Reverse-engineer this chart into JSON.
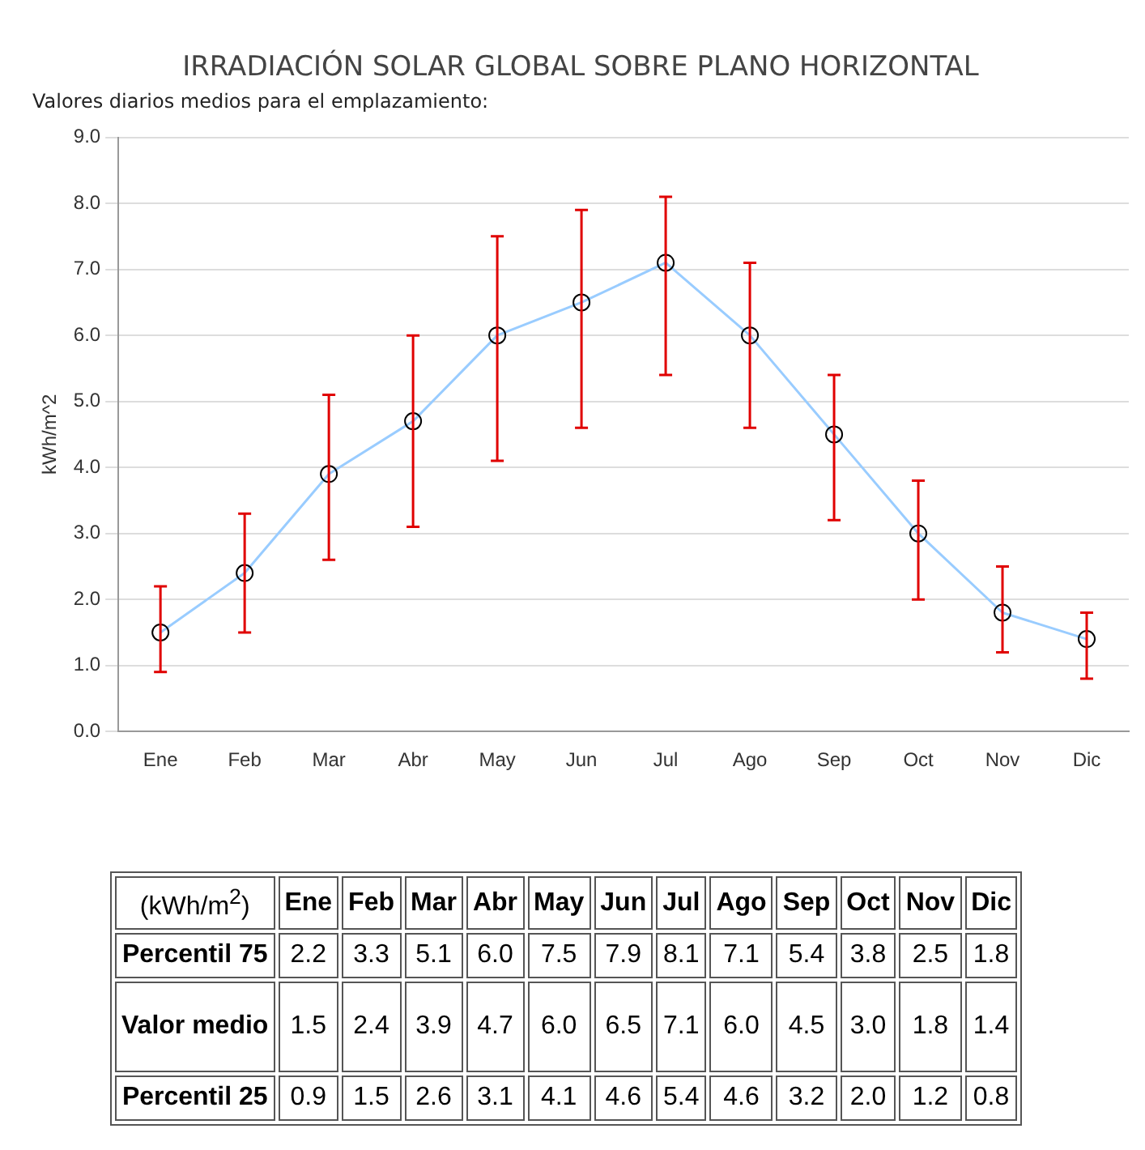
{
  "chart_data": [
    {
      "type": "line",
      "title": "IRRADIACIÓN SOLAR GLOBAL SOBRE PLANO HORIZONTAL",
      "subtitle": "Valores diarios medios para el emplazamiento:",
      "ylabel": "kWh/m^2",
      "categories": [
        "Ene",
        "Feb",
        "Mar",
        "Abr",
        "May",
        "Jun",
        "Jul",
        "Ago",
        "Sep",
        "Oct",
        "Nov",
        "Dic"
      ],
      "series": [
        {
          "color": "#99ccff",
          "values": [
            1.5,
            2.4,
            3.9,
            4.7,
            6.0,
            6.5,
            7.1,
            6.0,
            4.5,
            3.0,
            1.8,
            1.4
          ],
          "errors": [
            [
              0.9,
              2.2
            ],
            [
              1.5,
              3.3
            ],
            [
              2.6,
              5.1
            ],
            [
              3.1,
              6.0
            ],
            [
              4.1,
              7.5
            ],
            [
              4.6,
              7.9
            ],
            [
              5.4,
              8.1
            ],
            [
              4.6,
              7.1
            ],
            [
              3.2,
              5.4
            ],
            [
              2.0,
              3.8
            ],
            [
              1.2,
              2.5
            ],
            [
              0.8,
              1.8
            ]
          ]
        }
      ],
      "ylim": [
        0,
        9
      ],
      "yticks": [
        {
          "value": 0,
          "label": "0.0"
        },
        {
          "value": 1,
          "label": "1.0"
        },
        {
          "value": 2,
          "label": "2.0"
        },
        {
          "value": 3,
          "label": "3.0"
        },
        {
          "value": 4,
          "label": "4.0"
        },
        {
          "value": 5,
          "label": "5.0"
        },
        {
          "value": 6,
          "label": "6.0"
        },
        {
          "value": 7,
          "label": "7.0"
        },
        {
          "value": 8,
          "label": "8.0"
        },
        {
          "value": 9,
          "label": "9.0"
        }
      ],
      "grid": "y",
      "marker": "circle",
      "line_style": "solid"
    },
    {
      "type": "other",
      "annotations": [
        "(kWh/m$^{2}$)"
      ],
      "categories": [
        "Ene",
        "Feb",
        "Mar",
        "Abr",
        "May",
        "Jun",
        "Jul",
        "Ago",
        "Sep",
        "Oct",
        "Nov",
        "Dic"
      ],
      "y_categories": [
        "Percentil 75",
        "Valor medio",
        "Percentil 25"
      ],
      "cell_labels": [
        [
          "2.2",
          "3.3",
          "5.1",
          "6.0",
          "7.5",
          "7.9",
          "8.1",
          "7.1",
          "5.4",
          "3.8",
          "2.5",
          "1.8"
        ],
        [
          "1.5",
          "2.4",
          "3.9",
          "4.7",
          "6.0",
          "6.5",
          "7.1",
          "6.0",
          "4.5",
          "3.0",
          "1.8",
          "1.4"
        ],
        [
          "0.9",
          "1.5",
          "2.6",
          "3.1",
          "4.1",
          "4.6",
          "5.4",
          "4.6",
          "3.2",
          "2.0",
          "1.2",
          "0.8"
        ]
      ]
    }
  ]
}
